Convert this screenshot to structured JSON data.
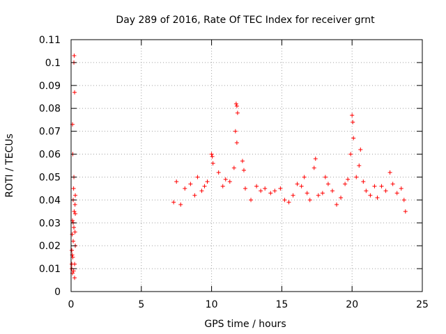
{
  "chart_data": {
    "type": "scatter",
    "title": "Day 289 of 2016, Rate Of TEC Index for receiver grnt",
    "xlabel": "GPS time / hours",
    "ylabel": "ROTI / TECUs",
    "xlim": [
      0,
      25
    ],
    "ylim": [
      0,
      0.11
    ],
    "xticks": [
      0,
      5,
      10,
      15,
      20,
      25
    ],
    "xtick_labels": [
      "0",
      "5",
      "10",
      "15",
      "20",
      "25"
    ],
    "yticks": [
      0,
      0.01,
      0.02,
      0.03,
      0.04,
      0.05,
      0.06,
      0.07,
      0.08,
      0.09,
      0.1,
      0.11
    ],
    "ytick_labels": [
      "0",
      "0.01",
      "0.02",
      "0.03",
      "0.04",
      "0.05",
      "0.06",
      "0.07",
      "0.08",
      "0.09",
      "0.1",
      "0.11"
    ],
    "grid": true,
    "marker": "+",
    "color": "#ff0000",
    "series": [
      {
        "name": "ROTI",
        "points": [
          [
            0.05,
            0.012
          ],
          [
            0.05,
            0.018
          ],
          [
            0.08,
            0.025
          ],
          [
            0.1,
            0.031
          ],
          [
            0.1,
            0.008
          ],
          [
            0.12,
            0.015
          ],
          [
            0.15,
            0.022
          ],
          [
            0.15,
            0.04
          ],
          [
            0.18,
            0.045
          ],
          [
            0.2,
            0.05
          ],
          [
            0.2,
            0.028
          ],
          [
            0.22,
            0.035
          ],
          [
            0.25,
            0.012
          ],
          [
            0.25,
            0.006
          ],
          [
            0.28,
            0.038
          ],
          [
            0.3,
            0.042
          ],
          [
            0.1,
            0.073
          ],
          [
            0.12,
            0.06
          ],
          [
            0.2,
            0.1
          ],
          [
            0.22,
            0.103
          ],
          [
            0.25,
            0.087
          ],
          [
            0.3,
            0.02
          ],
          [
            0.08,
            0.016
          ],
          [
            0.18,
            0.009
          ],
          [
            0.15,
            0.03
          ],
          [
            0.28,
            0.026
          ],
          [
            0.3,
            0.034
          ],
          [
            0.05,
            0.01
          ],
          [
            7.3,
            0.039
          ],
          [
            7.5,
            0.048
          ],
          [
            7.8,
            0.038
          ],
          [
            8.1,
            0.045
          ],
          [
            8.5,
            0.047
          ],
          [
            8.8,
            0.042
          ],
          [
            9.0,
            0.05
          ],
          [
            9.3,
            0.044
          ],
          [
            9.5,
            0.046
          ],
          [
            9.7,
            0.048
          ],
          [
            10.0,
            0.06
          ],
          [
            10.05,
            0.059
          ],
          [
            10.1,
            0.056
          ],
          [
            10.5,
            0.052
          ],
          [
            10.8,
            0.046
          ],
          [
            11.0,
            0.049
          ],
          [
            11.3,
            0.048
          ],
          [
            11.6,
            0.054
          ],
          [
            11.7,
            0.07
          ],
          [
            11.75,
            0.082
          ],
          [
            11.8,
            0.081
          ],
          [
            11.85,
            0.078
          ],
          [
            11.8,
            0.065
          ],
          [
            12.2,
            0.057
          ],
          [
            12.3,
            0.053
          ],
          [
            12.4,
            0.045
          ],
          [
            12.8,
            0.04
          ],
          [
            13.2,
            0.046
          ],
          [
            13.5,
            0.044
          ],
          [
            13.8,
            0.045
          ],
          [
            14.2,
            0.043
          ],
          [
            14.5,
            0.044
          ],
          [
            14.9,
            0.045
          ],
          [
            15.2,
            0.04
          ],
          [
            15.5,
            0.039
          ],
          [
            15.8,
            0.042
          ],
          [
            16.1,
            0.047
          ],
          [
            16.4,
            0.046
          ],
          [
            16.6,
            0.05
          ],
          [
            16.8,
            0.043
          ],
          [
            17.0,
            0.04
          ],
          [
            17.3,
            0.054
          ],
          [
            17.4,
            0.058
          ],
          [
            17.6,
            0.042
          ],
          [
            17.9,
            0.043
          ],
          [
            18.1,
            0.05
          ],
          [
            18.3,
            0.047
          ],
          [
            18.6,
            0.044
          ],
          [
            18.9,
            0.038
          ],
          [
            19.2,
            0.041
          ],
          [
            19.5,
            0.047
          ],
          [
            19.7,
            0.049
          ],
          [
            19.9,
            0.06
          ],
          [
            20.0,
            0.077
          ],
          [
            20.05,
            0.074
          ],
          [
            20.1,
            0.067
          ],
          [
            20.3,
            0.05
          ],
          [
            20.5,
            0.055
          ],
          [
            20.6,
            0.062
          ],
          [
            20.8,
            0.048
          ],
          [
            21.0,
            0.044
          ],
          [
            21.3,
            0.042
          ],
          [
            21.6,
            0.046
          ],
          [
            21.8,
            0.041
          ],
          [
            22.1,
            0.046
          ],
          [
            22.4,
            0.044
          ],
          [
            22.7,
            0.052
          ],
          [
            22.9,
            0.047
          ],
          [
            23.2,
            0.043
          ],
          [
            23.5,
            0.045
          ],
          [
            23.7,
            0.04
          ],
          [
            23.8,
            0.035
          ]
        ]
      }
    ]
  }
}
